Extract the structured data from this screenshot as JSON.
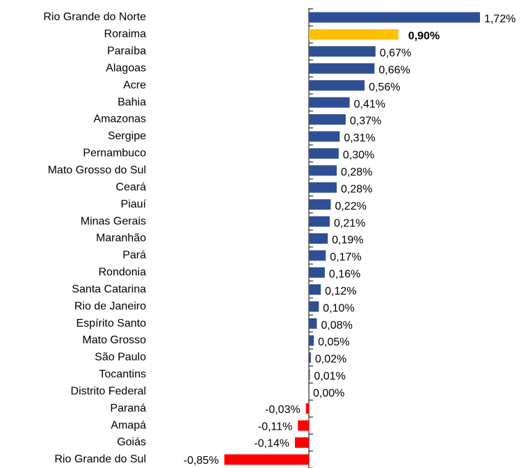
{
  "chart_data": {
    "type": "hbar",
    "categories": [
      "Rio Grande do Norte",
      "Roraima",
      "Paraíba",
      "Alagoas",
      "Acre",
      "Bahia",
      "Amazonas",
      "Sergipe",
      "Pernambuco",
      "Mato Grosso do Sul",
      "Ceará",
      "Piauí",
      "Minas Gerais",
      "Maranhão",
      "Pará",
      "Rondonia",
      "Santa Catarina",
      "Rio de Janeiro",
      "Espírito Santo",
      "Mato Grosso",
      "São Paulo",
      "Tocantins",
      "Distrito Federal",
      "Paraná",
      "Amapá",
      "Goiás",
      "Rio Grande do Sul"
    ],
    "values": [
      1.72,
      0.9,
      0.67,
      0.66,
      0.56,
      0.41,
      0.37,
      0.31,
      0.3,
      0.28,
      0.28,
      0.22,
      0.21,
      0.19,
      0.17,
      0.16,
      0.12,
      0.1,
      0.08,
      0.05,
      0.02,
      0.01,
      0.0,
      -0.03,
      -0.11,
      -0.14,
      -0.85
    ],
    "value_labels": [
      "1,72%",
      "0,90%",
      "0,67%",
      "0,66%",
      "0,56%",
      "0,41%",
      "0,37%",
      "0,31%",
      "0,30%",
      "0,28%",
      "0,28%",
      "0,22%",
      "0,21%",
      "0,19%",
      "0,17%",
      "0,16%",
      "0,12%",
      "0,10%",
      "0,08%",
      "0,05%",
      "0,02%",
      "0,01%",
      "0,00%",
      "-0,03%",
      "-0,11%",
      "-0,14%",
      "-0,85%"
    ],
    "colors": [
      "#2f4f94",
      "#ffc000",
      "#2f4f94",
      "#2f4f94",
      "#2f4f94",
      "#2f4f94",
      "#2f4f94",
      "#2f4f94",
      "#2f4f94",
      "#2f4f94",
      "#2f4f94",
      "#2f4f94",
      "#2f4f94",
      "#2f4f94",
      "#2f4f94",
      "#2f4f94",
      "#2f4f94",
      "#2f4f94",
      "#2f4f94",
      "#2f4f94",
      "#2f4f94",
      "#2f4f94",
      "#2f4f94",
      "#ff0000",
      "#ff0000",
      "#ff0000",
      "#ff0000"
    ],
    "highlight_color": "#ffc000"
  }
}
